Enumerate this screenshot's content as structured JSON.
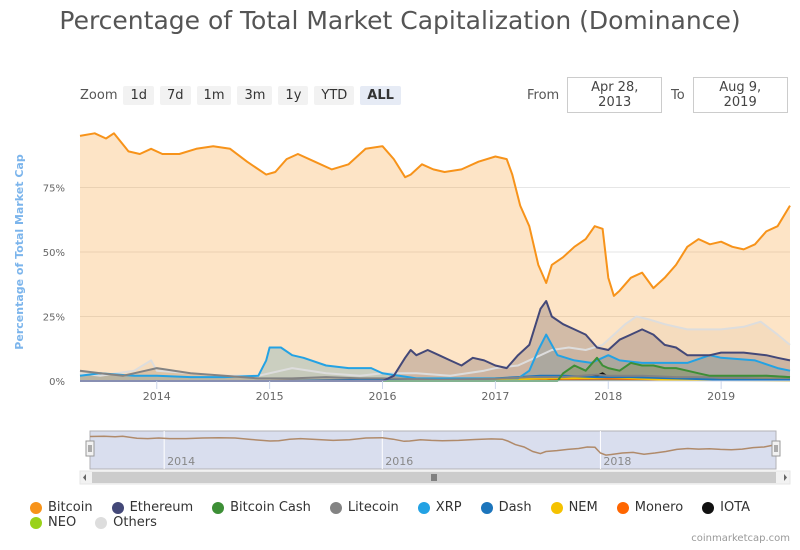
{
  "title": "Percentage of Total Market Capitalization (Dominance)",
  "zoom": {
    "label": "Zoom",
    "buttons": [
      "1d",
      "7d",
      "1m",
      "3m",
      "1y",
      "YTD",
      "ALL"
    ],
    "active": "ALL"
  },
  "range": {
    "from_label": "From",
    "from_value": "Apr 28, 2013",
    "to_label": "To",
    "to_value": "Aug 9, 2019"
  },
  "credits": "coinmarketcap.com",
  "colors": {
    "bitcoin": "#f7931a",
    "ethereum": "#434878",
    "bitcoin_cash": "#3d8f36",
    "litecoin": "#838383",
    "xrp": "#23a2e4",
    "dash": "#1c75bc",
    "nem": "#f5c200",
    "monero": "#ff6600",
    "iota": "#111111",
    "neo": "#9ad219",
    "others": "#dddddd"
  },
  "chart_data": {
    "type": "area",
    "title": "Percentage of Total Market Capitalization (Dominance)",
    "ylabel": "Percentage of Total Market Cap",
    "xlabel": "",
    "yticks": [
      "0%",
      "25%",
      "50%",
      "75%"
    ],
    "ylim": [
      0,
      100
    ],
    "xlim": [
      2013.32,
      2019.61
    ],
    "xticks": [
      "2014",
      "2015",
      "2016",
      "2017",
      "2018",
      "2019"
    ],
    "navigator_ticks": [
      "2014",
      "2016",
      "2018"
    ],
    "grid": true,
    "legend_position": "bottom-left",
    "series": [
      {
        "name": "Bitcoin",
        "color": "#f7931a",
        "x": [
          2013.32,
          2013.45,
          2013.55,
          2013.62,
          2013.75,
          2013.85,
          2013.95,
          2014.05,
          2014.2,
          2014.35,
          2014.5,
          2014.65,
          2014.8,
          2014.97,
          2015.05,
          2015.15,
          2015.25,
          2015.4,
          2015.55,
          2015.7,
          2015.85,
          2016.0,
          2016.1,
          2016.2,
          2016.25,
          2016.35,
          2016.45,
          2016.55,
          2016.7,
          2016.85,
          2017.0,
          2017.1,
          2017.15,
          2017.22,
          2017.3,
          2017.38,
          2017.45,
          2017.5,
          2017.6,
          2017.7,
          2017.8,
          2017.88,
          2017.95,
          2018.0,
          2018.05,
          2018.1,
          2018.2,
          2018.3,
          2018.4,
          2018.5,
          2018.6,
          2018.7,
          2018.8,
          2018.9,
          2019.0,
          2019.1,
          2019.2,
          2019.3,
          2019.4,
          2019.5,
          2019.61
        ],
        "values": [
          95,
          96,
          94,
          96,
          89,
          88,
          90,
          88,
          88,
          90,
          91,
          90,
          85,
          80,
          81,
          86,
          88,
          85,
          82,
          84,
          90,
          91,
          86,
          79,
          80,
          84,
          82,
          81,
          82,
          85,
          87,
          86,
          80,
          68,
          60,
          45,
          38,
          45,
          48,
          52,
          55,
          60,
          59,
          40,
          33,
          35,
          40,
          42,
          36,
          40,
          45,
          52,
          55,
          53,
          54,
          52,
          51,
          53,
          58,
          60,
          68
        ]
      },
      {
        "name": "Ethereum",
        "color": "#434878",
        "x": [
          2013.32,
          2015.5,
          2016.0,
          2016.1,
          2016.2,
          2016.25,
          2016.3,
          2016.4,
          2016.5,
          2016.6,
          2016.7,
          2016.8,
          2016.9,
          2017.0,
          2017.1,
          2017.2,
          2017.3,
          2017.4,
          2017.45,
          2017.5,
          2017.6,
          2017.7,
          2017.8,
          2017.9,
          2018.0,
          2018.1,
          2018.2,
          2018.3,
          2018.4,
          2018.5,
          2018.6,
          2018.7,
          2018.8,
          2018.9,
          2019.0,
          2019.2,
          2019.4,
          2019.5,
          2019.61
        ],
        "values": [
          0,
          0,
          0,
          2,
          9,
          12,
          10,
          12,
          10,
          8,
          6,
          9,
          8,
          6,
          5,
          10,
          14,
          28,
          31,
          25,
          22,
          20,
          18,
          13,
          12,
          16,
          18,
          20,
          18,
          14,
          13,
          10,
          10,
          10,
          11,
          11,
          10,
          9,
          8
        ]
      },
      {
        "name": "Bitcoin Cash",
        "color": "#3d8f36",
        "x": [
          2013.32,
          2017.55,
          2017.6,
          2017.7,
          2017.8,
          2017.9,
          2017.95,
          2018.0,
          2018.1,
          2018.2,
          2018.3,
          2018.4,
          2018.5,
          2018.6,
          2018.7,
          2018.8,
          2018.9,
          2019.0,
          2019.2,
          2019.4,
          2019.61
        ],
        "values": [
          0,
          0,
          3,
          6,
          4,
          9,
          6,
          5,
          4,
          7,
          6,
          6,
          5,
          5,
          4,
          3,
          2,
          2,
          2,
          2,
          1.5
        ]
      },
      {
        "name": "Litecoin",
        "color": "#838383",
        "x": [
          2013.32,
          2013.5,
          2013.7,
          2013.9,
          2014.0,
          2014.3,
          2014.6,
          2014.9,
          2015.2,
          2015.5,
          2015.8,
          2016.0,
          2016.5,
          2017.0,
          2017.3,
          2017.6,
          2017.9,
          2018.0,
          2018.3,
          2018.6,
          2018.9,
          2019.2,
          2019.4,
          2019.61
        ],
        "values": [
          4,
          3,
          2,
          4,
          5,
          3,
          2,
          1,
          1,
          1.5,
          1,
          1,
          0.5,
          0.8,
          1.5,
          1.5,
          2.5,
          2,
          2,
          1.5,
          1.5,
          1.5,
          2,
          1.5
        ]
      },
      {
        "name": "XRP",
        "color": "#23a2e4",
        "x": [
          2013.32,
          2013.5,
          2013.8,
          2014.0,
          2014.3,
          2014.6,
          2014.9,
          2014.97,
          2015.0,
          2015.1,
          2015.2,
          2015.3,
          2015.5,
          2015.7,
          2015.9,
          2016.0,
          2016.3,
          2016.6,
          2016.9,
          2017.0,
          2017.2,
          2017.3,
          2017.38,
          2017.45,
          2017.55,
          2017.7,
          2017.85,
          2017.95,
          2018.0,
          2018.1,
          2018.3,
          2018.5,
          2018.7,
          2018.9,
          2019.0,
          2019.3,
          2019.5,
          2019.61
        ],
        "values": [
          2,
          3,
          2,
          2,
          1.5,
          1.5,
          2,
          8,
          13,
          13,
          10,
          9,
          6,
          5,
          5,
          3,
          1,
          1,
          1,
          1,
          1,
          4,
          12,
          18,
          10,
          8,
          7,
          9,
          10,
          8,
          7,
          7,
          7,
          10,
          9,
          8,
          5,
          4
        ]
      },
      {
        "name": "Dash",
        "color": "#1c75bc",
        "x": [
          2013.32,
          2015.0,
          2016.0,
          2016.5,
          2017.0,
          2017.2,
          2017.4,
          2017.6,
          2017.9,
          2018.2,
          2018.6,
          2019.0,
          2019.61
        ],
        "values": [
          0,
          0,
          0.5,
          0.8,
          1,
          1.5,
          2,
          2,
          1.5,
          1.5,
          1,
          0.5,
          0.5
        ]
      },
      {
        "name": "NEM",
        "color": "#f5c200",
        "x": [
          2013.32,
          2016.5,
          2017.0,
          2017.4,
          2017.9,
          2018.0,
          2018.5,
          2019.0,
          2019.61
        ],
        "values": [
          0,
          0,
          0.3,
          1,
          1.2,
          1.5,
          0.5,
          0.2,
          0.1
        ]
      },
      {
        "name": "Monero",
        "color": "#ff6600",
        "x": [
          2013.32,
          2015.0,
          2016.5,
          2017.0,
          2017.5,
          2018.0,
          2018.5,
          2019.0,
          2019.61
        ],
        "values": [
          0,
          0,
          0.8,
          1,
          0.8,
          1,
          0.6,
          0.5,
          0.5
        ]
      },
      {
        "name": "IOTA",
        "color": "#111111",
        "x": [
          2013.32,
          2017.45,
          2017.6,
          2017.9,
          2017.95,
          2018.0,
          2018.5,
          2019.0,
          2019.61
        ],
        "values": [
          0,
          0,
          1,
          2,
          3,
          1.5,
          0.7,
          0.3,
          0.2
        ]
      },
      {
        "name": "NEO",
        "color": "#9ad219",
        "x": [
          2013.32,
          2017.4,
          2017.6,
          2017.9,
          2018.0,
          2018.5,
          2019.0,
          2019.61
        ],
        "values": [
          0,
          0,
          1,
          1.2,
          1.5,
          1,
          0.5,
          0.4
        ]
      },
      {
        "name": "Others",
        "color": "#dddddd",
        "x": [
          2013.32,
          2013.5,
          2013.8,
          2013.95,
          2014.0,
          2014.3,
          2014.6,
          2014.9,
          2015.2,
          2015.5,
          2015.8,
          2016.0,
          2016.3,
          2016.6,
          2016.9,
          2017.0,
          2017.2,
          2017.35,
          2017.5,
          2017.65,
          2017.8,
          2017.95,
          2018.05,
          2018.15,
          2018.25,
          2018.35,
          2018.5,
          2018.7,
          2018.9,
          2019.0,
          2019.2,
          2019.35,
          2019.5,
          2019.61
        ],
        "values": [
          3,
          2,
          4,
          8,
          4,
          3,
          2,
          2,
          5,
          3,
          2,
          3,
          3,
          2,
          4,
          5,
          6,
          9,
          12,
          13,
          12,
          14,
          18,
          22,
          25,
          24,
          22,
          20,
          20,
          20,
          21,
          23,
          18,
          14
        ]
      }
    ]
  }
}
